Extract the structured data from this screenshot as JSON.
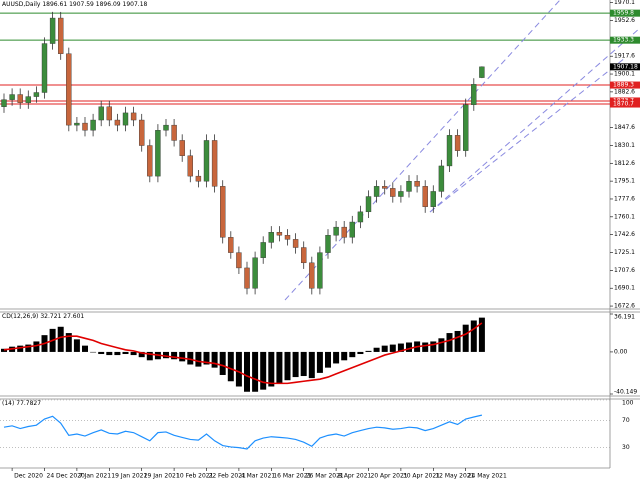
{
  "chart_data": {
    "type": "candlestick",
    "title": "AUUSD,Daily",
    "categories": [
      null,
      "Dec 2020",
      null,
      null,
      null,
      "24 Dec 2020",
      null,
      null,
      null,
      "7 Jan 2021",
      null,
      null,
      null,
      "19 Jan 2021",
      null,
      null,
      null,
      "29 Jan 2021",
      null,
      null,
      null,
      "10 Feb 2021",
      null,
      null,
      null,
      "22 Feb 2021",
      null,
      null,
      null,
      "4 Mar 2021",
      null,
      null,
      null,
      "16 Mar 2021",
      null,
      null,
      null,
      "26 Mar 2021",
      null,
      null,
      null,
      "8 Apr 2021",
      null,
      null,
      null,
      "20 Apr 2021",
      null,
      null,
      null,
      "30 Apr 2021",
      null,
      null,
      null,
      "12 May 2021",
      null,
      null,
      null,
      "24 May 2021",
      null,
      null
    ],
    "open": [
      1868,
      1875,
      1880,
      1872,
      1878,
      1882,
      1930,
      1955,
      1920,
      1850,
      1852,
      1845,
      1855,
      1868,
      1855,
      1850,
      1862,
      1855,
      1830,
      1800,
      1845,
      1850,
      1835,
      1820,
      1800,
      1795,
      1835,
      1790,
      1740,
      1725,
      1710,
      1690,
      1720,
      1735,
      1745,
      1742,
      1738,
      1730,
      1715,
      1690,
      1725,
      1742,
      1750,
      1740,
      1755,
      1765,
      1780,
      1790,
      1788,
      1780,
      1785,
      1795,
      1790,
      1770,
      1785,
      1810,
      1840,
      1825,
      1870,
      1896.61
    ],
    "high": [
      1881,
      1886,
      1886,
      1884,
      1888,
      1936,
      1961,
      1961,
      1926,
      1858,
      1858,
      1861,
      1874,
      1874,
      1861,
      1868,
      1868,
      1861,
      1836,
      1851,
      1856,
      1856,
      1841,
      1826,
      1806,
      1841,
      1841,
      1796,
      1746,
      1731,
      1716,
      1726,
      1741,
      1751,
      1751,
      1748,
      1744,
      1736,
      1721,
      1731,
      1748,
      1756,
      1756,
      1761,
      1771,
      1786,
      1796,
      1796,
      1794,
      1791,
      1801,
      1801,
      1796,
      1791,
      1816,
      1846,
      1846,
      1876,
      1896,
      1907.59
    ],
    "low": [
      1862,
      1869,
      1866,
      1866,
      1872,
      1876,
      1924,
      1914,
      1844,
      1844,
      1839,
      1839,
      1849,
      1849,
      1844,
      1844,
      1849,
      1824,
      1794,
      1794,
      1839,
      1829,
      1814,
      1794,
      1789,
      1789,
      1784,
      1734,
      1719,
      1704,
      1684,
      1684,
      1714,
      1729,
      1736,
      1732,
      1724,
      1709,
      1684,
      1684,
      1719,
      1736,
      1734,
      1734,
      1749,
      1759,
      1774,
      1782,
      1774,
      1774,
      1779,
      1784,
      1764,
      1764,
      1779,
      1804,
      1819,
      1819,
      1864,
      1896.09
    ],
    "close": [
      1875,
      1880,
      1872,
      1878,
      1882,
      1930,
      1955,
      1920,
      1850,
      1852,
      1845,
      1855,
      1868,
      1855,
      1850,
      1862,
      1855,
      1830,
      1800,
      1845,
      1850,
      1835,
      1820,
      1800,
      1795,
      1835,
      1790,
      1740,
      1725,
      1710,
      1690,
      1720,
      1735,
      1745,
      1742,
      1738,
      1730,
      1715,
      1690,
      1725,
      1742,
      1750,
      1740,
      1755,
      1765,
      1780,
      1790,
      1788,
      1780,
      1785,
      1795,
      1790,
      1770,
      1785,
      1810,
      1840,
      1825,
      1870,
      1890,
      1907.18
    ],
    "up_color": "#3c8c3c",
    "down_color": "#c8663c",
    "ylim": [
      1670.7,
      1972.7
    ],
    "yticks": [
      1970.1,
      1952.6,
      1917.6,
      1900.1,
      1882.6,
      1847.6,
      1830.1,
      1812.6,
      1795.1,
      1777.6,
      1760.1,
      1742.6,
      1725.1,
      1707.6,
      1690.1,
      1672.6
    ],
    "levels": [
      {
        "value": 1959.8,
        "color": "#2e8b2e"
      },
      {
        "value": 1933.3,
        "color": "#2e8b2e"
      },
      {
        "value": 1889.3,
        "color": "#e02020"
      },
      {
        "value": 1873.7,
        "color": "#e02020"
      },
      {
        "value": 1870.7,
        "color": "#e02020"
      }
    ],
    "macd": {
      "label": "CD(12,26,9)",
      "histogram": [
        3,
        5,
        6,
        7,
        10,
        16,
        22,
        24,
        18,
        12,
        6,
        0,
        -2,
        -3,
        -3,
        -2,
        -3,
        -5,
        -8,
        -7,
        -6,
        -7,
        -9,
        -12,
        -14,
        -12,
        -15,
        -22,
        -28,
        -33,
        -38,
        -38,
        -36,
        -33,
        -30,
        -27,
        -24,
        -23,
        -25,
        -20,
        -15,
        -11,
        -8,
        -5,
        -2,
        1,
        4,
        6,
        7,
        8,
        9,
        10,
        9,
        10,
        13,
        18,
        20,
        26,
        30,
        32.721
      ],
      "signal": [
        2,
        3,
        4,
        5,
        6,
        8,
        11,
        14,
        15,
        15,
        13,
        11,
        8,
        6,
        4,
        2,
        1,
        -1,
        -2,
        -3,
        -4,
        -5,
        -6,
        -7,
        -9,
        -10,
        -11,
        -13,
        -16,
        -19,
        -23,
        -26,
        -29,
        -30,
        -30,
        -30,
        -29,
        -28,
        -27,
        -26,
        -24,
        -21,
        -18,
        -15,
        -12,
        -9,
        -6,
        -3,
        -1,
        1,
        3,
        5,
        6,
        7,
        9,
        11,
        14,
        17,
        22,
        27.601
      ],
      "hist_color": "#000000",
      "signal_color": "#e00000",
      "ylim": [
        -40.149,
        36.191
      ],
      "yticks": [
        36.191,
        {
          "value": 0,
          "label": "0.00"
        },
        -40.149
      ]
    },
    "rsi": {
      "label": "(14)",
      "values": [
        60,
        62,
        58,
        61,
        63,
        72,
        76,
        66,
        48,
        50,
        47,
        52,
        56,
        51,
        50,
        54,
        52,
        46,
        40,
        52,
        53,
        48,
        45,
        42,
        41,
        50,
        40,
        33,
        31,
        30,
        28,
        40,
        44,
        46,
        45,
        44,
        42,
        38,
        32,
        44,
        48,
        50,
        47,
        52,
        55,
        58,
        60,
        59,
        57,
        58,
        60,
        59,
        55,
        58,
        63,
        68,
        64,
        72,
        75,
        77.7827
      ],
      "color": "#1e90ff",
      "ylim": [
        0,
        100
      ],
      "yticks": [
        100,
        70,
        30
      ]
    }
  }
}
